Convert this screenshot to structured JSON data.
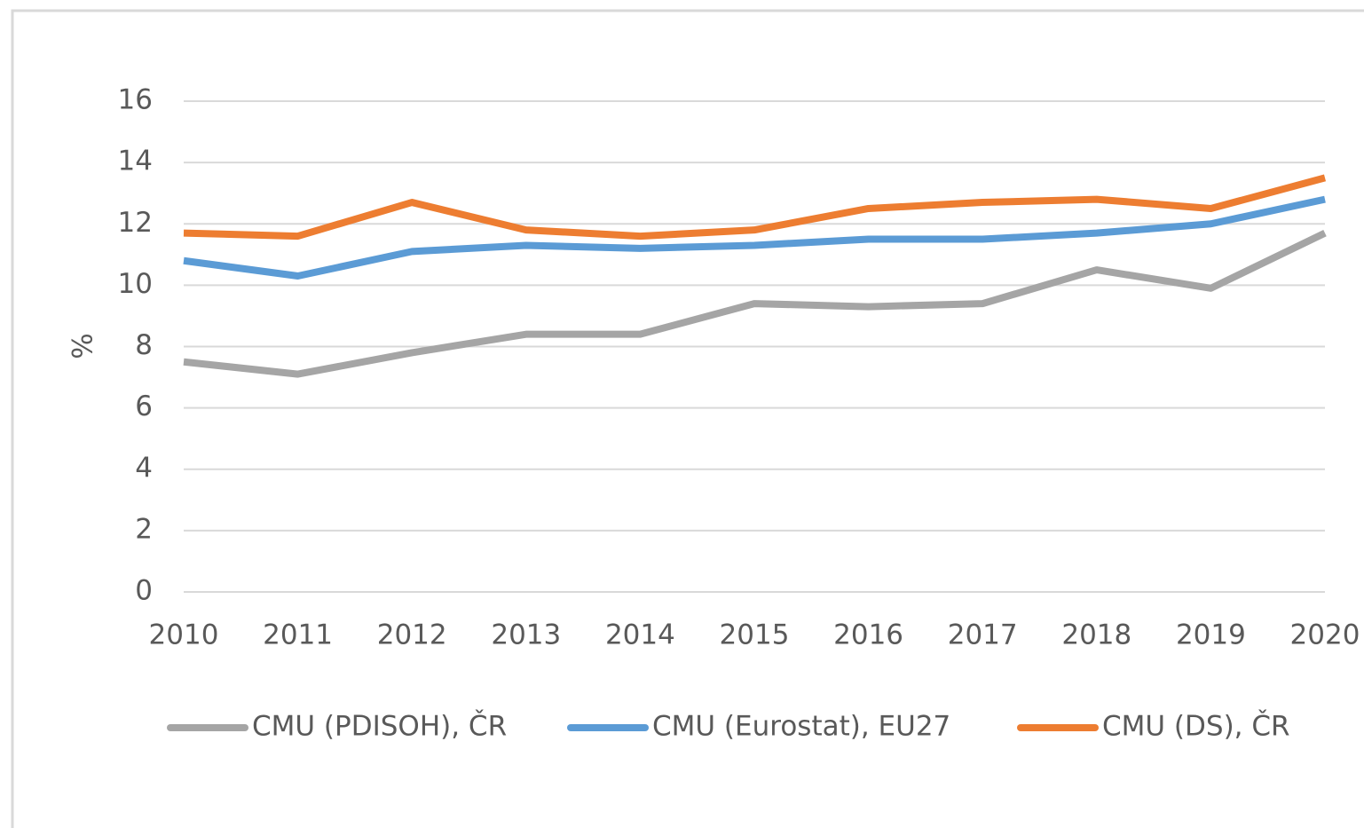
{
  "chart_data": {
    "type": "line",
    "y_label": "%",
    "x": [
      2010,
      2011,
      2012,
      2013,
      2014,
      2015,
      2016,
      2017,
      2018,
      2019,
      2020
    ],
    "xlim": [
      2010,
      2020
    ],
    "xticks": [
      2010,
      2011,
      2012,
      2013,
      2014,
      2015,
      2016,
      2017,
      2018,
      2019,
      2020
    ],
    "ylim": [
      0,
      16
    ],
    "yticks": [
      0,
      2,
      4,
      6,
      8,
      10,
      12,
      14,
      16
    ],
    "grid": true,
    "legend": "bottom",
    "series": [
      {
        "name": "CMU (PDISOH), ČR",
        "color": "#a5a5a5",
        "values": [
          7.5,
          7.1,
          7.8,
          8.4,
          8.4,
          9.4,
          9.3,
          9.4,
          10.5,
          9.9,
          11.7
        ]
      },
      {
        "name": "CMU (Eurostat), EU27",
        "color": "#5b9bd5",
        "values": [
          10.8,
          10.3,
          11.1,
          11.3,
          11.2,
          11.3,
          11.5,
          11.5,
          11.7,
          12.0,
          12.8
        ]
      },
      {
        "name": "CMU (DS), ČR",
        "color": "#ed7d31",
        "values": [
          11.7,
          11.6,
          12.7,
          11.8,
          11.6,
          11.8,
          12.5,
          12.7,
          12.8,
          12.5,
          13.5
        ]
      }
    ]
  }
}
